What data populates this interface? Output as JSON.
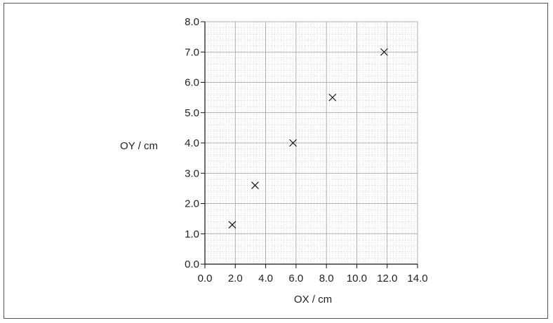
{
  "chart_data": {
    "type": "scatter",
    "title": "",
    "xlabel": "OX / cm",
    "ylabel": "OY / cm",
    "xlim": [
      0.0,
      14.0
    ],
    "ylim": [
      0.0,
      8.0
    ],
    "x_ticks": [
      "0.0",
      "2.0",
      "4.0",
      "6.0",
      "8.0",
      "10.0",
      "12.0",
      "14.0"
    ],
    "y_ticks": [
      "0.0",
      "1.0",
      "2.0",
      "3.0",
      "4.0",
      "5.0",
      "6.0",
      "7.0",
      "8.0"
    ],
    "grid": true,
    "marker": "cross",
    "points": [
      {
        "x": 1.8,
        "y": 1.3
      },
      {
        "x": 3.3,
        "y": 2.6
      },
      {
        "x": 5.8,
        "y": 4.0
      },
      {
        "x": 8.4,
        "y": 5.5
      },
      {
        "x": 11.8,
        "y": 7.0
      }
    ]
  }
}
